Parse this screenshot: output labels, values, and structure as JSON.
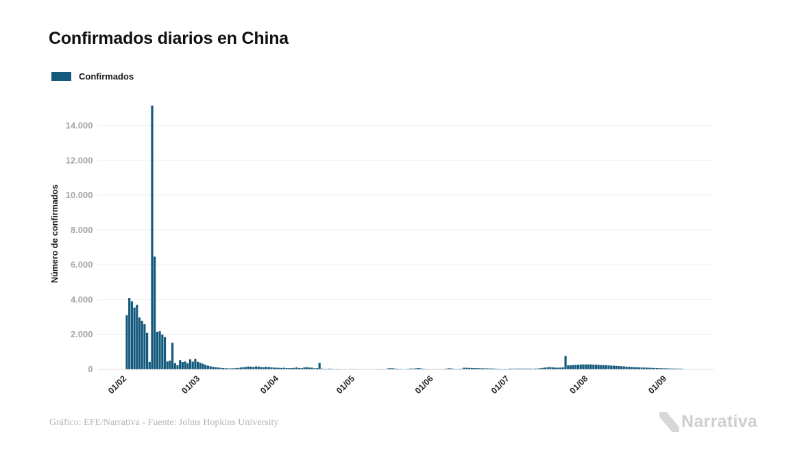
{
  "header": {
    "title": "Confirmados diarios en China"
  },
  "legend": {
    "items": [
      {
        "label": "Confirmados",
        "color": "#155a7c"
      }
    ]
  },
  "footer": {
    "credit": "Gráfico: EFE/Narrativa - Fuente: Johns Hopkins University",
    "brand": "Narrativa"
  },
  "chart_data": {
    "type": "bar",
    "title": "Confirmados diarios en China",
    "xlabel": "",
    "ylabel": "Número de confirmados",
    "legend_position": "top-left",
    "grid": "horizontal",
    "bar_color": "#155a7c",
    "grid_color": "#e9e9e9",
    "zero_line_color": "#d9d9d9",
    "y_tick_color": "#a6a6a6",
    "x_tick_color": "#262626",
    "ylim": [
      0,
      15500
    ],
    "y_ticks": {
      "values": [
        0,
        2000,
        4000,
        6000,
        8000,
        10000,
        12000,
        14000
      ],
      "labels": [
        "0",
        "2.000",
        "4.000",
        "6.000",
        "8.000",
        "10.000",
        "12.000",
        "14.000"
      ]
    },
    "x_ticks": {
      "labels": [
        "01/02",
        "01/03",
        "01/04",
        "01/05",
        "01/06",
        "01/07",
        "01/08",
        "01/09"
      ],
      "day_offsets": [
        0,
        29,
        60,
        90,
        121,
        151,
        182,
        213
      ]
    },
    "series": [
      {
        "name": "Confirmados",
        "start_label": "01/02",
        "x_unit": "day",
        "values": [
          3100,
          4075,
          3900,
          3535,
          3690,
          2965,
          2780,
          2580,
          2080,
          417,
          15141,
          6463,
          2145,
          2180,
          1985,
          1840,
          440,
          490,
          1520,
          340,
          230,
          520,
          410,
          440,
          330,
          560,
          430,
          580,
          420,
          360,
          310,
          250,
          200,
          160,
          130,
          110,
          90,
          75,
          60,
          50,
          45,
          42,
          45,
          55,
          70,
          95,
          110,
          130,
          150,
          140,
          130,
          155,
          145,
          120,
          110,
          130,
          120,
          100,
          90,
          80,
          75,
          65,
          80,
          60,
          55,
          60,
          70,
          95,
          65,
          55,
          100,
          110,
          90,
          85,
          50,
          55,
          355,
          30,
          20,
          15,
          30,
          15,
          10,
          15,
          12,
          6,
          8,
          6,
          10,
          12,
          8,
          5,
          4,
          5,
          3,
          4,
          3,
          2,
          3,
          16,
          8,
          10,
          6,
          40,
          55,
          45,
          30,
          20,
          15,
          10,
          8,
          25,
          35,
          30,
          45,
          60,
          40,
          25,
          15,
          10,
          8,
          10,
          8,
          6,
          8,
          10,
          30,
          45,
          40,
          25,
          15,
          20,
          25,
          80,
          75,
          70,
          65,
          60,
          55,
          50,
          48,
          45,
          42,
          40,
          35,
          30,
          25,
          20,
          18,
          20,
          15,
          30,
          28,
          26,
          30,
          32,
          28,
          30,
          28,
          30,
          25,
          28,
          35,
          50,
          70,
          90,
          110,
          120,
          100,
          90,
          80,
          90,
          100,
          760,
          215,
          225,
          235,
          245,
          255,
          265,
          270,
          265,
          268,
          270,
          262,
          255,
          248,
          240,
          232,
          225,
          215,
          205,
          195,
          185,
          175,
          165,
          155,
          145,
          135,
          125,
          115,
          108,
          102,
          96,
          90,
          84,
          78,
          72,
          66,
          60,
          55,
          50,
          46,
          42,
          38,
          35,
          32,
          30,
          28,
          26
        ]
      }
    ]
  }
}
